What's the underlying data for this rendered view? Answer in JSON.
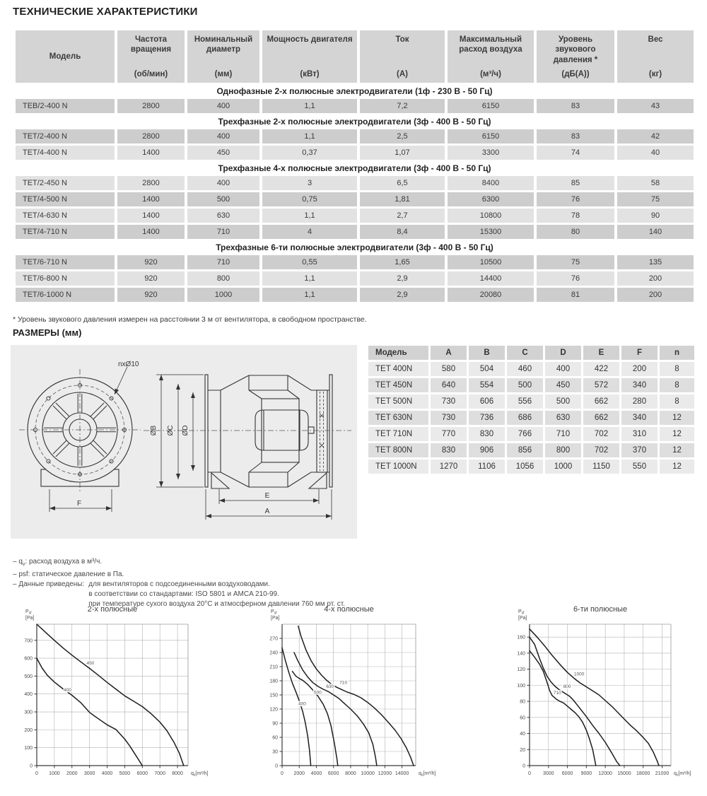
{
  "page": {
    "title": "ТЕХНИЧЕСКИЕ ХАРАКТЕРИСТИКИ"
  },
  "spec_table": {
    "headers": [
      {
        "label": "Модель",
        "unit": ""
      },
      {
        "label": "Частота вращения",
        "unit": "(об/мин)"
      },
      {
        "label": "Номинальный диаметр",
        "unit": "(мм)"
      },
      {
        "label": "Мощность двигателя",
        "unit": "(кВт)"
      },
      {
        "label": "Ток",
        "unit": "(А)"
      },
      {
        "label": "Максимальный расход воздуха",
        "unit": "(м³/ч)"
      },
      {
        "label": "Уровень звукового давления *",
        "unit": "(дБ(А))"
      },
      {
        "label": "Вес",
        "unit": "(кг)"
      }
    ],
    "sections": [
      {
        "title": "Однофазные 2-х полюсные электродвигатели (1ф - 230 В - 50 Гц)",
        "alt_start": "dark",
        "rows": [
          [
            "TEB/2-400 N",
            "2800",
            "400",
            "1,1",
            "7,2",
            "6150",
            "83",
            "43"
          ]
        ]
      },
      {
        "title": "Трехфазные 2-х полюсные электродвигатели (3ф - 400 В - 50 Гц)",
        "alt_start": "dark",
        "rows": [
          [
            "TET/2-400 N",
            "2800",
            "400",
            "1,1",
            "2,5",
            "6150",
            "83",
            "42"
          ],
          [
            "TET/4-400 N",
            "1400",
            "450",
            "0,37",
            "1,07",
            "3300",
            "74",
            "40"
          ]
        ]
      },
      {
        "title": "Трехфазные 4-х полюсные электродвигатели (3ф - 400 В - 50 Гц)",
        "alt_start": "light",
        "rows": [
          [
            "TET/2-450 N",
            "2800",
            "400",
            "3",
            "6,5",
            "8400",
            "85",
            "58"
          ],
          [
            "TET/4-500 N",
            "1400",
            "500",
            "0,75",
            "1,81",
            "6300",
            "76",
            "75"
          ],
          [
            "TET/4-630 N",
            "1400",
            "630",
            "1,1",
            "2,7",
            "10800",
            "78",
            "90"
          ],
          [
            "TET/4-710 N",
            "1400",
            "710",
            "4",
            "8,4",
            "15300",
            "80",
            "140"
          ]
        ]
      },
      {
        "title": "Трехфазные 6-ти полюсные электродвигатели (3ф - 400 В - 50 Гц)",
        "alt_start": "dark",
        "rows": [
          [
            "TET/6-710 N",
            "920",
            "710",
            "0,55",
            "1,65",
            "10500",
            "75",
            "135"
          ],
          [
            "TET/6-800 N",
            "920",
            "800",
            "1,1",
            "2,9",
            "14400",
            "76",
            "200"
          ],
          [
            "TET/6-1000 N",
            "920",
            "1000",
            "1,1",
            "2,9",
            "20080",
            "81",
            "200"
          ]
        ]
      }
    ],
    "footnote": "* Уровень звукового давления измерен на расстоянии 3 м от вентилятора, в свободном пространстве."
  },
  "dimensions": {
    "heading": "РАЗМЕРЫ (мм)",
    "drawing_labels": {
      "holes": "nxØ10",
      "dB": "ØB",
      "dC": "ØC",
      "dD": "ØD",
      "E": "E",
      "A": "A",
      "F": "F"
    },
    "table": {
      "headers": [
        "Модель",
        "A",
        "B",
        "C",
        "D",
        "E",
        "F",
        "n"
      ],
      "rows": [
        [
          "TET 400N",
          "580",
          "504",
          "460",
          "400",
          "422",
          "200",
          "8"
        ],
        [
          "TET 450N",
          "640",
          "554",
          "500",
          "450",
          "572",
          "340",
          "8"
        ],
        [
          "TET 500N",
          "730",
          "606",
          "556",
          "500",
          "662",
          "280",
          "8"
        ],
        [
          "TET 630N",
          "730",
          "736",
          "686",
          "630",
          "662",
          "340",
          "12"
        ],
        [
          "TET 710N",
          "770",
          "830",
          "766",
          "710",
          "702",
          "310",
          "12"
        ],
        [
          "TET 800N",
          "830",
          "906",
          "856",
          "800",
          "702",
          "370",
          "12"
        ],
        [
          "TET 1000N",
          "1270",
          "1106",
          "1056",
          "1000",
          "1150",
          "550",
          "12"
        ]
      ]
    }
  },
  "notes": {
    "q_prefix": "– q",
    "q_sub": "v",
    "q_rest": ": расход воздуха в м³/ч.",
    "psf_line": "– psf: статическое давление в Па.",
    "data_label": "– Данные приведены:",
    "data_lines": [
      "для вентиляторов с подсоединенными воздуховодами.",
      "в соответствии со стандартами: ISO 5801 и AMCA 210-99.",
      "при температуре сухого воздуха 20°С и атмосферном давлении 760 мм рт. ст."
    ]
  },
  "chart_data": [
    {
      "type": "line",
      "title": "2-х полюсные",
      "ylabel": {
        "pre": "P",
        "sub": "sf",
        "unit": "[Pa]"
      },
      "xlabel": {
        "pre": "q",
        "sub": "v",
        "unit": "[m³/h]"
      },
      "xlim": [
        0,
        8600
      ],
      "ylim": [
        0,
        790
      ],
      "xticks": [
        0,
        1000,
        2000,
        3000,
        4000,
        5000,
        6000,
        7000,
        8000
      ],
      "yticks": [
        0,
        100,
        200,
        300,
        400,
        500,
        600,
        700
      ],
      "grid": true,
      "legend_position": "on-curve",
      "series": [
        {
          "name": "450",
          "label_at": [
            3050,
            565
          ],
          "points": [
            [
              0,
              790
            ],
            [
              500,
              745
            ],
            [
              1000,
              700
            ],
            [
              1500,
              657
            ],
            [
              2000,
              617
            ],
            [
              2500,
              580
            ],
            [
              3000,
              543
            ],
            [
              3500,
              505
            ],
            [
              4000,
              465
            ],
            [
              4500,
              427
            ],
            [
              5000,
              390
            ],
            [
              5500,
              360
            ],
            [
              6000,
              330
            ],
            [
              6500,
              290
            ],
            [
              7000,
              243
            ],
            [
              7400,
              195
            ],
            [
              7800,
              130
            ],
            [
              8100,
              70
            ],
            [
              8350,
              0
            ]
          ]
        },
        {
          "name": "400",
          "label_at": [
            1750,
            415
          ],
          "points": [
            [
              0,
              600
            ],
            [
              300,
              545
            ],
            [
              600,
              505
            ],
            [
              1000,
              467
            ],
            [
              1500,
              428
            ],
            [
              2000,
              393
            ],
            [
              2500,
              352
            ],
            [
              3000,
              297
            ],
            [
              3500,
              262
            ],
            [
              4000,
              228
            ],
            [
              4500,
              202
            ],
            [
              5000,
              148
            ],
            [
              5300,
              108
            ],
            [
              5600,
              62
            ],
            [
              6000,
              0
            ]
          ]
        }
      ]
    },
    {
      "type": "line",
      "title": "4-х полюсные",
      "ylabel": {
        "pre": "P",
        "sub": "sf",
        "unit": "[Pa]"
      },
      "xlabel": {
        "pre": "q",
        "sub": "v",
        "unit": "[m³/h]"
      },
      "xlim": [
        0,
        15600
      ],
      "ylim": [
        0,
        300
      ],
      "xticks": [
        0,
        2000,
        4000,
        6000,
        8000,
        10000,
        12000,
        14000
      ],
      "yticks": [
        0,
        30,
        60,
        90,
        120,
        150,
        180,
        210,
        240,
        270
      ],
      "grid": true,
      "legend_position": "on-curve",
      "series": [
        {
          "name": "400",
          "label_at": [
            2350,
            128
          ],
          "points": [
            [
              0,
              250
            ],
            [
              400,
              222
            ],
            [
              800,
              197
            ],
            [
              1200,
              175
            ],
            [
              1600,
              157
            ],
            [
              2000,
              138
            ],
            [
              2400,
              115
            ],
            [
              2700,
              92
            ],
            [
              3000,
              62
            ],
            [
              3200,
              32
            ],
            [
              3350,
              0
            ]
          ]
        },
        {
          "name": "500",
          "label_at": [
            4150,
            152
          ],
          "points": [
            [
              1200,
              200
            ],
            [
              1600,
              190
            ],
            [
              2000,
              185
            ],
            [
              2400,
              181
            ],
            [
              3000,
              172
            ],
            [
              3600,
              160
            ],
            [
              4200,
              147
            ],
            [
              4800,
              130
            ],
            [
              5300,
              110
            ],
            [
              5700,
              85
            ],
            [
              6100,
              48
            ],
            [
              6400,
              15
            ],
            [
              6500,
              0
            ]
          ]
        },
        {
          "name": "630",
          "label_at": [
            5600,
            165
          ],
          "points": [
            [
              1400,
              240
            ],
            [
              1800,
              224
            ],
            [
              2400,
              203
            ],
            [
              3000,
              188
            ],
            [
              3600,
              176
            ],
            [
              4200,
              168
            ],
            [
              4800,
              162
            ],
            [
              5400,
              157
            ],
            [
              6000,
              150
            ],
            [
              6600,
              143
            ],
            [
              7200,
              133
            ],
            [
              8000,
              120
            ],
            [
              8800,
              105
            ],
            [
              9500,
              88
            ],
            [
              10100,
              70
            ],
            [
              10600,
              45
            ],
            [
              10900,
              18
            ],
            [
              11050,
              0
            ]
          ]
        },
        {
          "name": "710",
          "label_at": [
            7150,
            173
          ],
          "points": [
            [
              1880,
              296
            ],
            [
              2200,
              275
            ],
            [
              2800,
              245
            ],
            [
              3400,
              222
            ],
            [
              4000,
              205
            ],
            [
              4600,
              192
            ],
            [
              5200,
              181
            ],
            [
              5800,
              172
            ],
            [
              6400,
              166
            ],
            [
              7000,
              161
            ],
            [
              7600,
              156
            ],
            [
              8400,
              151
            ],
            [
              9200,
              144
            ],
            [
              10000,
              134
            ],
            [
              10800,
              122
            ],
            [
              11600,
              108
            ],
            [
              12400,
              92
            ],
            [
              13200,
              75
            ],
            [
              13900,
              57
            ],
            [
              14500,
              38
            ],
            [
              15000,
              18
            ],
            [
              15350,
              0
            ]
          ]
        }
      ]
    },
    {
      "type": "line",
      "title": "6-ти полюсные",
      "ylabel": {
        "pre": "P",
        "sub": "sf",
        "unit": "[Pa]"
      },
      "xlabel": {
        "pre": "q",
        "sub": "v",
        "unit": "[m³/h]"
      },
      "xlim": [
        0,
        22400
      ],
      "ylim": [
        0,
        176
      ],
      "xticks": [
        0,
        3000,
        6000,
        9000,
        12000,
        15000,
        18000,
        21000
      ],
      "yticks": [
        0,
        20,
        40,
        60,
        80,
        100,
        120,
        140,
        160
      ],
      "grid": true,
      "legend_position": "on-curve",
      "series": [
        {
          "name": "710",
          "label_at": [
            4400,
            89
          ],
          "points": [
            [
              0,
              143
            ],
            [
              800,
              135
            ],
            [
              1600,
              126
            ],
            [
              2200,
              117
            ],
            [
              2800,
              103
            ],
            [
              3200,
              93
            ],
            [
              3600,
              87
            ],
            [
              4200,
              83
            ],
            [
              4800,
              80
            ],
            [
              5400,
              78
            ],
            [
              6000,
              74
            ],
            [
              6600,
              70
            ],
            [
              7200,
              66
            ],
            [
              7800,
              61
            ],
            [
              8400,
              54
            ],
            [
              9000,
              44
            ],
            [
              9500,
              33
            ],
            [
              10000,
              20
            ],
            [
              10500,
              0
            ]
          ]
        },
        {
          "name": "800",
          "label_at": [
            5950,
            97
          ],
          "points": [
            [
              0,
              160
            ],
            [
              800,
              151
            ],
            [
              1600,
              133
            ],
            [
              2200,
              121
            ],
            [
              2800,
              111
            ],
            [
              3400,
              104
            ],
            [
              4000,
              99
            ],
            [
              4600,
              95
            ],
            [
              5200,
              92
            ],
            [
              5800,
              89
            ],
            [
              6400,
              86
            ],
            [
              7000,
              81
            ],
            [
              7600,
              75
            ],
            [
              8200,
              69
            ],
            [
              9000,
              61
            ],
            [
              10000,
              50
            ],
            [
              11000,
              40
            ],
            [
              12000,
              29
            ],
            [
              13000,
              16
            ],
            [
              13800,
              5
            ],
            [
              14300,
              0
            ]
          ]
        },
        {
          "name": "1000",
          "label_at": [
            7850,
            112
          ],
          "points": [
            [
              0,
              170
            ],
            [
              1200,
              160
            ],
            [
              2400,
              149
            ],
            [
              3600,
              137
            ],
            [
              4800,
              126
            ],
            [
              6000,
              116
            ],
            [
              7000,
              109
            ],
            [
              8000,
              103
            ],
            [
              9000,
              98
            ],
            [
              10000,
              93
            ],
            [
              11000,
              88
            ],
            [
              12000,
              81
            ],
            [
              13000,
              74
            ],
            [
              14000,
              66
            ],
            [
              15000,
              58
            ],
            [
              16000,
              50
            ],
            [
              17000,
              43
            ],
            [
              18000,
              35
            ],
            [
              18800,
              28
            ],
            [
              19600,
              17
            ],
            [
              20200,
              6
            ],
            [
              20500,
              0
            ]
          ]
        }
      ]
    }
  ]
}
